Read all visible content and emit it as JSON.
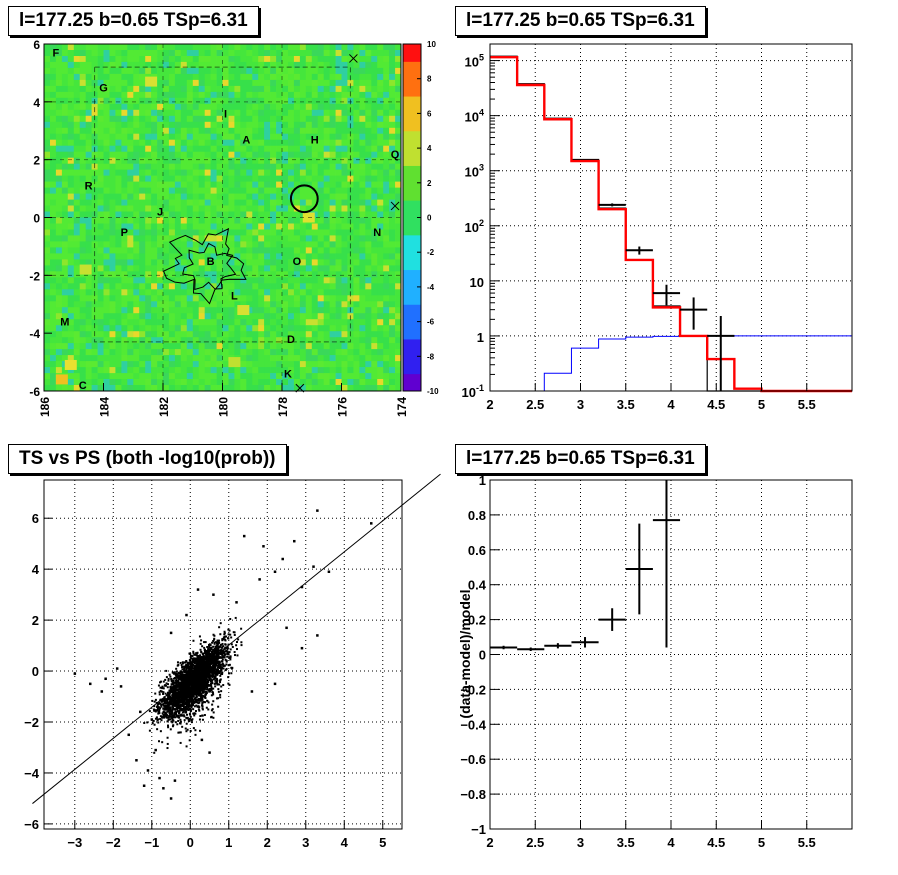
{
  "titles": {
    "map": "l=177.25 b=0.65 TSp=6.31",
    "spectrum": "l=177.25 b=0.65 TSp=6.31",
    "scatter": "TS vs PS (both -log10(prob))",
    "residual": "l=177.25 b=0.65 TSp=6.31"
  },
  "chart_data": [
    {
      "type": "heatmap",
      "title": "l=177.25 b=0.65 TSp=6.31",
      "xlim": [
        186,
        174
      ],
      "ylim": [
        -6,
        6
      ],
      "xticks": [
        "186",
        "184",
        "182",
        "180",
        "178",
        "176",
        "174"
      ],
      "yticks": [
        "-6",
        "-4",
        "-2",
        "0",
        "2",
        "4",
        "6"
      ],
      "colorbar": {
        "range": [
          -10,
          10
        ],
        "ticks": [
          "-10",
          "-8",
          "-6",
          "-4",
          "-2",
          "0",
          "2",
          "4",
          "6",
          "8",
          "10"
        ]
      },
      "colors": {
        "base": "#44e53a",
        "hot": "#e8e030",
        "cold": "#2fd5c0"
      },
      "labels": [
        {
          "t": "F",
          "l": 185.6,
          "b": 5.7
        },
        {
          "t": "G",
          "l": 184,
          "b": 4.5
        },
        {
          "t": "I",
          "l": 179.9,
          "b": 3.6
        },
        {
          "t": "A",
          "l": 179.2,
          "b": 2.7
        },
        {
          "t": "H",
          "l": 176.9,
          "b": 2.7
        },
        {
          "t": "Q",
          "l": 174.2,
          "b": 2.2
        },
        {
          "t": "R",
          "l": 184.5,
          "b": 1.1
        },
        {
          "t": "J",
          "l": 182.1,
          "b": 0.2
        },
        {
          "t": "N",
          "l": 174.8,
          "b": -0.5
        },
        {
          "t": "P",
          "l": 183.3,
          "b": -0.5
        },
        {
          "t": "B",
          "l": 180.4,
          "b": -1.5
        },
        {
          "t": "O",
          "l": 177.5,
          "b": -1.5
        },
        {
          "t": "L",
          "l": 179.6,
          "b": -2.7
        },
        {
          "t": "M",
          "l": 185.3,
          "b": -3.6
        },
        {
          "t": "D",
          "l": 177.7,
          "b": -4.2
        },
        {
          "t": "K",
          "l": 177.8,
          "b": -5.4
        },
        {
          "t": "C",
          "l": 184.7,
          "b": -5.8
        }
      ],
      "circle": {
        "l": 177.25,
        "b": 0.65,
        "r": 0.45
      },
      "crosses": [
        {
          "l": 175.6,
          "b": 5.5
        },
        {
          "l": 174.2,
          "b": 0.4
        },
        {
          "l": 177.4,
          "b": -5.9
        }
      ]
    },
    {
      "type": "line",
      "title": "l=177.25 b=0.65 TSp=6.31",
      "xlim": [
        2,
        6
      ],
      "ylim": [
        0.1,
        200000
      ],
      "log_y": true,
      "xticks": [
        "2",
        "2.5",
        "3",
        "3.5",
        "4",
        "4.5",
        "5",
        "5.5"
      ],
      "yticks": [
        "10^-1",
        "1",
        "10",
        "10^2",
        "10^3",
        "10^4",
        "10^5"
      ],
      "bin_edges": [
        2,
        2.3,
        2.6,
        2.9,
        3.2,
        3.5,
        3.8,
        4.1,
        4.4,
        4.7,
        5.0,
        5.3,
        5.6,
        5.9,
        6
      ],
      "series": [
        {
          "color": "#000000",
          "values": [
            120000,
            38000,
            9000,
            1600,
            210,
            24,
            3.5,
            1.0,
            0.1,
            0.1,
            0.1,
            0.1,
            0.1,
            0.1
          ]
        },
        {
          "color": "#ff0000",
          "values": [
            115000,
            36000,
            8600,
            1500,
            200,
            24,
            3.3,
            1.0,
            0.38,
            0.11,
            0.1,
            0.1,
            0.1,
            0.1
          ]
        },
        {
          "color": "#0000ff",
          "values": [
            0.1,
            0.1,
            0.21,
            0.6,
            0.88,
            0.95,
            0.98,
            1.0,
            1.0,
            1.0,
            1.0,
            1.0,
            1.0,
            1.0
          ]
        }
      ],
      "points": [
        {
          "x": 3.35,
          "y": 240,
          "ex": 0.15,
          "ylo": 225,
          "yhi": 255
        },
        {
          "x": 3.65,
          "y": 36,
          "ex": 0.15,
          "ylo": 30,
          "yhi": 42
        },
        {
          "x": 3.95,
          "y": 6,
          "ex": 0.15,
          "ylo": 3.6,
          "yhi": 8.5
        },
        {
          "x": 4.25,
          "y": 3,
          "ex": 0.15,
          "ylo": 1.3,
          "yhi": 5
        },
        {
          "x": 4.55,
          "y": 1,
          "ex": 0.15,
          "ylo": 0.1,
          "yhi": 2.3
        }
      ]
    },
    {
      "type": "scatter",
      "title": "TS vs PS (both -log10(prob))",
      "xlim": [
        -3.8,
        5.5
      ],
      "ylim": [
        -6.2,
        7.5
      ],
      "xticks": [
        "-3",
        "-2",
        "-1",
        "0",
        "1",
        "2",
        "3",
        "4",
        "5"
      ],
      "yticks": [
        "-6",
        "-4",
        "-2",
        "0",
        "2",
        "4",
        "6"
      ],
      "fit_line": {
        "slope": 1.22,
        "intercept": -0.2
      },
      "outliers": [
        [
          4.7,
          5.8
        ],
        [
          3.3,
          6.3
        ],
        [
          2.7,
          5.1
        ],
        [
          2.4,
          4.4
        ],
        [
          3.2,
          4.1
        ],
        [
          1.9,
          4.9
        ],
        [
          1.4,
          5.3
        ],
        [
          3.6,
          3.9
        ],
        [
          2.9,
          3.3
        ],
        [
          3.3,
          1.4
        ],
        [
          2.9,
          0.9
        ],
        [
          2.5,
          1.7
        ],
        [
          -3.0,
          -0.1
        ],
        [
          -2.6,
          -0.5
        ],
        [
          -2.2,
          -0.3
        ],
        [
          -1.9,
          0.1
        ],
        [
          -2.3,
          -0.8
        ],
        [
          -1.8,
          -0.6
        ],
        [
          -1.2,
          -4.5
        ],
        [
          -0.5,
          -5.0
        ],
        [
          -0.7,
          -4.6
        ],
        [
          -0.8,
          -4.2
        ],
        [
          -1.1,
          -3.9
        ],
        [
          -1.4,
          -3.5
        ],
        [
          -0.4,
          -4.3
        ],
        [
          -0.9,
          -3.1
        ],
        [
          0.5,
          -3.2
        ],
        [
          0.3,
          -2.7
        ],
        [
          -1.6,
          -2.5
        ],
        [
          -1.0,
          -1.9
        ],
        [
          -1.3,
          -1.6
        ],
        [
          2.2,
          -0.5
        ],
        [
          1.6,
          -0.8
        ],
        [
          1.8,
          3.6
        ],
        [
          2.2,
          3.9
        ],
        [
          1.2,
          2.7
        ],
        [
          0.2,
          3.2
        ],
        [
          0.6,
          3.0
        ],
        [
          -0.1,
          2.2
        ],
        [
          -0.5,
          1.5
        ]
      ],
      "dense_cloud": {
        "center": [
          0.1,
          -0.3
        ],
        "count": 3000,
        "color": "#000000"
      }
    },
    {
      "type": "line",
      "title": "l=177.25 b=0.65 TSp=6.31",
      "ylabel": "(data-model)/model",
      "xlim": [
        2,
        6
      ],
      "ylim": [
        -1,
        1
      ],
      "xticks": [
        "2",
        "2.5",
        "3",
        "3.5",
        "4",
        "4.5",
        "5",
        "5.5"
      ],
      "yticks": [
        "-1",
        "-0.8",
        "-0.6",
        "-0.4",
        "-0.2",
        "0",
        "0.2",
        "0.4",
        "0.6",
        "0.8",
        "1"
      ],
      "points": [
        {
          "x": 2.15,
          "y": 0.04,
          "ex": 0.15,
          "ey": 0.01
        },
        {
          "x": 2.45,
          "y": 0.03,
          "ex": 0.15,
          "ey": 0.01
        },
        {
          "x": 2.75,
          "y": 0.05,
          "ex": 0.15,
          "ey": 0.015
        },
        {
          "x": 3.05,
          "y": 0.07,
          "ex": 0.15,
          "ey": 0.03
        },
        {
          "x": 3.35,
          "y": 0.2,
          "ex": 0.15,
          "ey": 0.065
        },
        {
          "x": 3.65,
          "y": 0.49,
          "ex": 0.15,
          "ey": 0.26
        },
        {
          "x": 3.95,
          "y": 0.77,
          "ex": 0.15,
          "ey": 0.73
        }
      ]
    }
  ]
}
